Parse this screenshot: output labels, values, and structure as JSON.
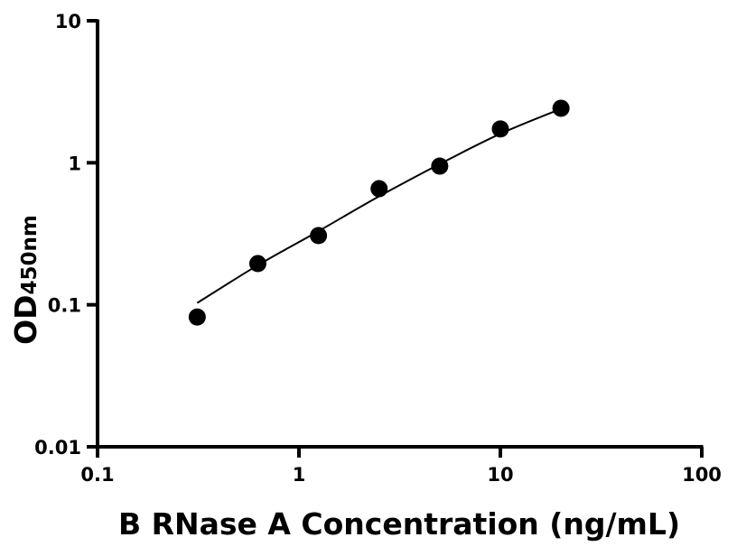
{
  "chart_data": {
    "type": "scatter",
    "title": "",
    "xlabel": "B RNase A Concentration (ng/mL)",
    "ylabel_main": "OD",
    "ylabel_sub": "450nm",
    "x_scale": "log",
    "y_scale": "log",
    "xlim": [
      0.1,
      100
    ],
    "ylim": [
      0.01,
      10
    ],
    "x_ticks": [
      "0.1",
      "1",
      "10",
      "100"
    ],
    "y_ticks": [
      "0.01",
      "0.1",
      "1",
      "10"
    ],
    "grid": false,
    "legend": "none",
    "point_color": "#000000",
    "x": [
      0.3125,
      0.625,
      1.25,
      2.5,
      5,
      10,
      20
    ],
    "y": [
      0.082,
      0.195,
      0.307,
      0.657,
      0.947,
      1.73,
      2.42
    ],
    "fit_curve": {
      "x": [
        0.3125,
        0.625,
        1.25,
        2.5,
        5,
        10,
        20
      ],
      "y": [
        0.103,
        0.19,
        0.33,
        0.58,
        0.98,
        1.6,
        2.4
      ]
    }
  }
}
